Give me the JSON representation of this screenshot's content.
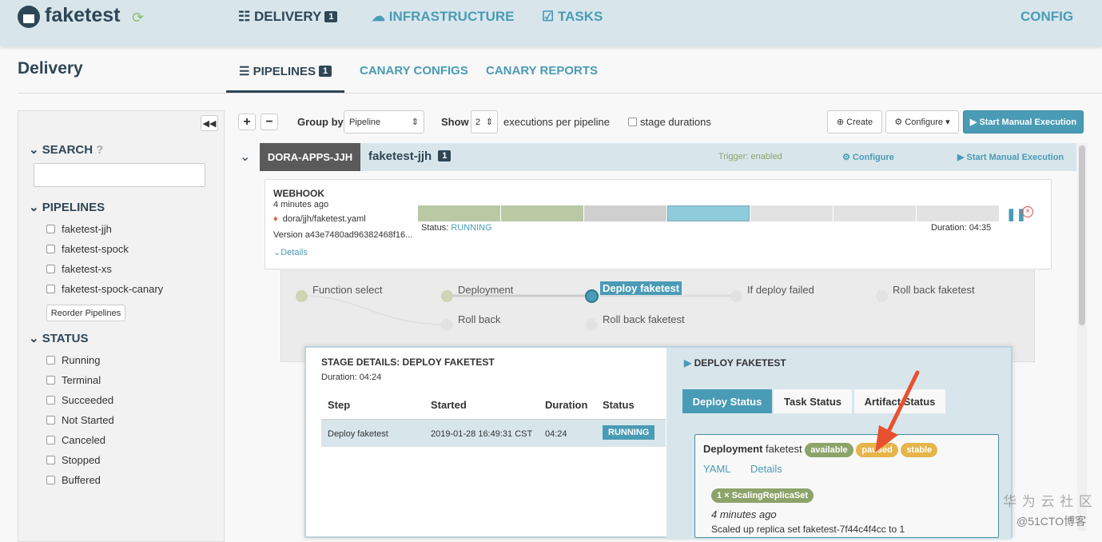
{
  "header": {
    "app_name": "faketest",
    "nav": [
      {
        "label": "DELIVERY",
        "badge": "1"
      },
      {
        "label": "INFRASTRUCTURE"
      },
      {
        "label": "TASKS"
      }
    ],
    "config": "CONFIG"
  },
  "subheader": {
    "title": "Delivery",
    "tabs": [
      {
        "label": "PIPELINES",
        "badge": "1"
      },
      {
        "label": "CANARY CONFIGS"
      },
      {
        "label": "CANARY REPORTS"
      }
    ]
  },
  "sidebar": {
    "search_label": "SEARCH",
    "search_value": "",
    "pipelines_label": "PIPELINES",
    "pipelines": [
      "faketest-jjh",
      "faketest-spock",
      "faketest-xs",
      "faketest-spock-canary"
    ],
    "reorder": "Reorder Pipelines",
    "status_label": "STATUS",
    "statuses": [
      "Running",
      "Terminal",
      "Succeeded",
      "Not Started",
      "Canceled",
      "Stopped",
      "Buffered"
    ]
  },
  "toolbar": {
    "group_by_label": "Group by",
    "group_by_value": "Pipeline",
    "show_label": "Show",
    "show_value": "2",
    "per_pipeline": "executions per pipeline",
    "stage_durations": "stage durations",
    "create": "Create",
    "configure": "Configure",
    "start": "Start Manual Execution"
  },
  "pipeline": {
    "group": "DORA-APPS-JJH",
    "name": "faketest-jjh",
    "count": "1",
    "trigger": "Trigger: enabled",
    "configure": "Configure",
    "start": "Start Manual Execution"
  },
  "execution": {
    "trigger": "WEBHOOK",
    "ago": "4 minutes ago",
    "repo": "dora/jjh/faketest.yaml",
    "version": "Version a43e7480ad96382468f16...",
    "details": "Details",
    "status_label": "Status:",
    "status": "RUNNING",
    "duration": "Duration: 04:35",
    "segments": [
      "succeeded",
      "succeeded",
      "not-started",
      "running",
      "not-started",
      "not-started",
      "not-started"
    ],
    "colors": {
      "succeeded": "#bac8a4",
      "running": "#8ecbdb",
      "not-started": "#e2e2e2",
      "skipped": "#cfcfcf"
    }
  },
  "graph": {
    "nodes": [
      "Function select",
      "Deployment",
      "Deploy faketest",
      "If deploy failed",
      "Roll back faketest",
      "Roll back",
      "Roll back faketest"
    ]
  },
  "stage_details": {
    "title": "STAGE DETAILS: DEPLOY FAKETEST",
    "duration": "Duration: 04:24",
    "columns": [
      "Step",
      "Started",
      "Duration",
      "Status"
    ],
    "rows": [
      {
        "step": "Deploy faketest",
        "started": "2019-01-28 16:49:31 CST",
        "duration": "04:24",
        "status": "RUNNING"
      }
    ]
  },
  "deploy_panel": {
    "title": "DEPLOY FAKETEST",
    "tabs": [
      "Deploy Status",
      "Task Status",
      "Artifact Status"
    ],
    "kind": "Deployment",
    "name": "faketest",
    "badges": [
      "available",
      "paused",
      "stable"
    ],
    "yaml": "YAML",
    "details": "Details",
    "event": "1 × ScalingReplicaSet",
    "event_time": "4 minutes ago",
    "event_msg": "Scaled up replica set faketest-7f44c4f4cc to 1"
  },
  "watermark": {
    "line1": "华 为 云 社 区",
    "line2": "@51CTO博客"
  }
}
